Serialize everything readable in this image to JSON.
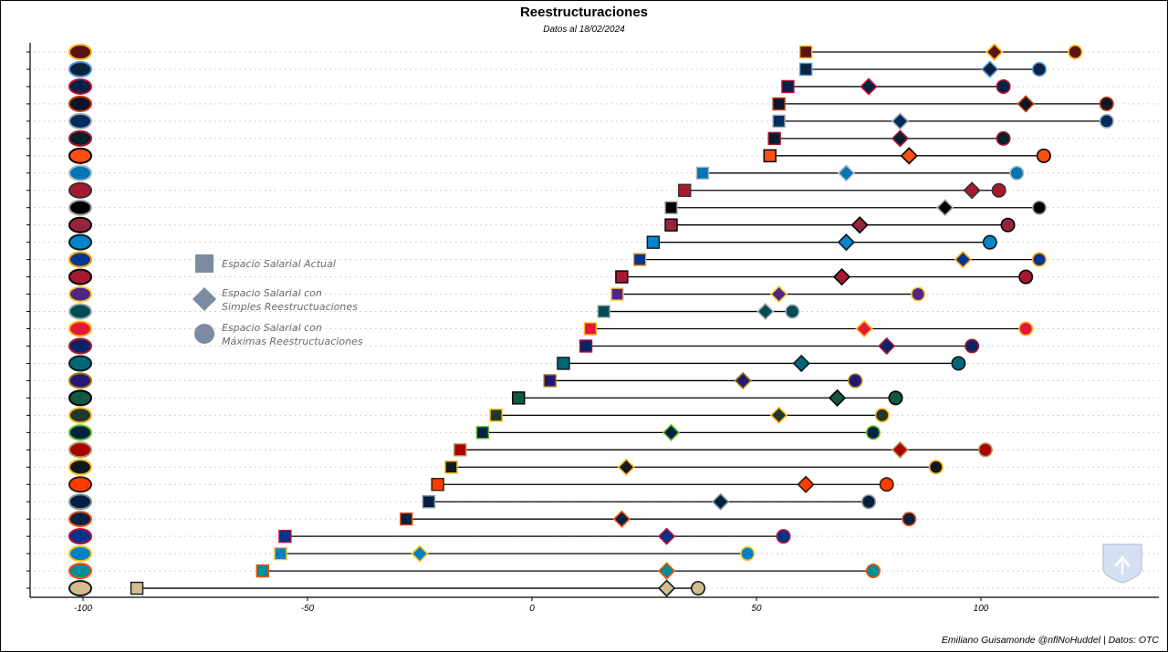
{
  "chart_data": {
    "type": "dumbbell",
    "title": "Reestructuraciones",
    "subtitle": "Datos al 18/02/2024",
    "caption": "Emiliano Guisamonde @nflNoHuddel | Datos: OTC",
    "xlim": [
      -110,
      140
    ],
    "xticks": [
      -100,
      -50,
      0,
      50,
      100
    ],
    "grid": "horizontal dotted",
    "legend_position": "center-left",
    "legend": [
      {
        "shape": "square",
        "label": [
          "Espacio Salarial Actual"
        ]
      },
      {
        "shape": "diamond",
        "label": [
          "Espacio Salarial con",
          "Simples Reestructuaciones"
        ]
      },
      {
        "shape": "circle",
        "label": [
          "Espacio Salarial con",
          "Máximas Reestructuaciones"
        ]
      }
    ],
    "legend_color": "#7b8ba1",
    "teams": [
      {
        "team": "WAS",
        "actual": 61,
        "simple": 103,
        "max": 121,
        "fill": "#5A1414",
        "edge": "#FFB612"
      },
      {
        "team": "TEN",
        "actual": 61,
        "simple": 102,
        "max": 113,
        "fill": "#0C2340",
        "edge": "#4B92DB"
      },
      {
        "team": "NE",
        "actual": 57,
        "simple": 75,
        "max": 105,
        "fill": "#002244",
        "edge": "#C60C30"
      },
      {
        "team": "CHI",
        "actual": 55,
        "simple": 110,
        "max": 128,
        "fill": "#0B162A",
        "edge": "#C83803"
      },
      {
        "team": "IND",
        "actual": 55,
        "simple": 82,
        "max": 128,
        "fill": "#002C5F",
        "edge": "#A2AAAD"
      },
      {
        "team": "HOU",
        "actual": 54,
        "simple": 82,
        "max": 105,
        "fill": "#03202F",
        "edge": "#A71930"
      },
      {
        "team": "CIN",
        "actual": 53,
        "simple": 84,
        "max": 114,
        "fill": "#FB4F14",
        "edge": "#000000"
      },
      {
        "team": "DET",
        "actual": 38,
        "simple": 70,
        "max": 108,
        "fill": "#0076B6",
        "edge": "#B0B7BC"
      },
      {
        "team": "TB",
        "actual": 34,
        "simple": 98,
        "max": 104,
        "fill": "#A71930",
        "edge": "#34302B"
      },
      {
        "team": "LV",
        "actual": 31,
        "simple": 92,
        "max": 113,
        "fill": "#000000",
        "edge": "#A5ACAF"
      },
      {
        "team": "ARI",
        "actual": 31,
        "simple": 73,
        "max": 106,
        "fill": "#97233F",
        "edge": "#000000"
      },
      {
        "team": "CAR",
        "actual": 27,
        "simple": 70,
        "max": 102,
        "fill": "#0085CA",
        "edge": "#101820"
      },
      {
        "team": "LAR",
        "actual": 24,
        "simple": 96,
        "max": 113,
        "fill": "#003594",
        "edge": "#FFA300"
      },
      {
        "team": "ATL",
        "actual": 20,
        "simple": 69,
        "max": 110,
        "fill": "#A71930",
        "edge": "#000000"
      },
      {
        "team": "MIN",
        "actual": 19,
        "simple": 55,
        "max": 86,
        "fill": "#4F2683",
        "edge": "#FFC62F"
      },
      {
        "team": "PHI",
        "actual": 16,
        "simple": 52,
        "max": 58,
        "fill": "#004C54",
        "edge": "#A5ACAF"
      },
      {
        "team": "KC",
        "actual": 13,
        "simple": 74,
        "max": 110,
        "fill": "#E31837",
        "edge": "#FFB81C"
      },
      {
        "team": "NYG",
        "actual": 12,
        "simple": 79,
        "max": 98,
        "fill": "#0B2265",
        "edge": "#A71930"
      },
      {
        "team": "JAX",
        "actual": 7,
        "simple": 60,
        "max": 95,
        "fill": "#006778",
        "edge": "#101820"
      },
      {
        "team": "BAL",
        "actual": 4,
        "simple": 47,
        "max": 72,
        "fill": "#241773",
        "edge": "#9E7C0C"
      },
      {
        "team": "NYJ",
        "actual": -3,
        "simple": 68,
        "max": 81,
        "fill": "#125740",
        "edge": "#000000"
      },
      {
        "team": "GB",
        "actual": -8,
        "simple": 55,
        "max": 78,
        "fill": "#203731",
        "edge": "#FFB612"
      },
      {
        "team": "SEA",
        "actual": -11,
        "simple": 31,
        "max": 76,
        "fill": "#002244",
        "edge": "#69BE28"
      },
      {
        "team": "SF",
        "actual": -16,
        "simple": 82,
        "max": 101,
        "fill": "#AA0000",
        "edge": "#B3995D"
      },
      {
        "team": "PIT",
        "actual": -18,
        "simple": 21,
        "max": 90,
        "fill": "#101820",
        "edge": "#FFB612"
      },
      {
        "team": "CLE",
        "actual": -21,
        "simple": 61,
        "max": 79,
        "fill": "#FF3C00",
        "edge": "#311D00"
      },
      {
        "team": "DAL",
        "actual": -23,
        "simple": 42,
        "max": 75,
        "fill": "#041E42",
        "edge": "#869397"
      },
      {
        "team": "DEN",
        "actual": -28,
        "simple": 20,
        "max": 84,
        "fill": "#002244",
        "edge": "#FB4F14"
      },
      {
        "team": "BUF",
        "actual": -55,
        "simple": 30,
        "max": 56,
        "fill": "#00338D",
        "edge": "#C60C30"
      },
      {
        "team": "LAC",
        "actual": -56,
        "simple": -25,
        "max": 48,
        "fill": "#0080C6",
        "edge": "#FFC20E"
      },
      {
        "team": "MIA",
        "actual": -60,
        "simple": 30,
        "max": 76,
        "fill": "#008E97",
        "edge": "#FC4C02"
      },
      {
        "team": "NO",
        "actual": -88,
        "simple": 30,
        "max": 37,
        "fill": "#D3BC8D",
        "edge": "#101820"
      }
    ]
  }
}
